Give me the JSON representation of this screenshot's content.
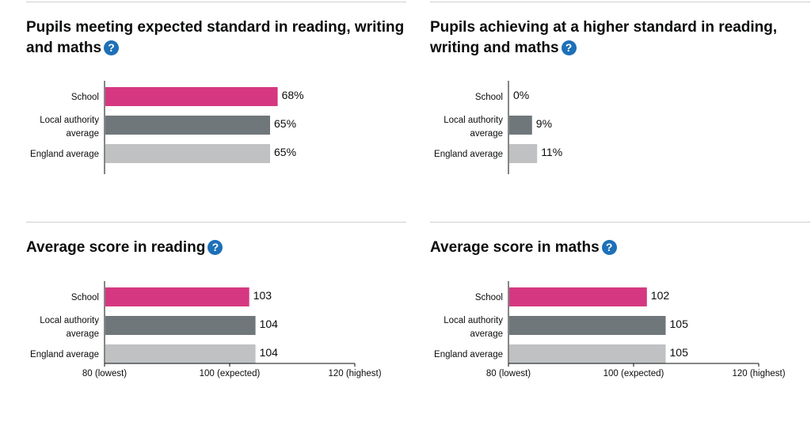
{
  "colors": {
    "school": "#d53880",
    "local": "#6f777b",
    "england": "#bfc1c3",
    "help": "#1d70b8"
  },
  "icons": {
    "help": "question-mark-circle-icon",
    "help_glyph": "?"
  },
  "chart_data": [
    {
      "type": "bar",
      "orientation": "horizontal",
      "title": "Pupils meeting expected standard in reading, writing and maths",
      "categories": [
        "School",
        "Local authority average",
        "England average"
      ],
      "values": [
        68,
        65,
        65
      ],
      "value_labels": [
        "68%",
        "65%",
        "65%"
      ],
      "xlim": [
        0,
        100
      ],
      "ticks": [],
      "legend": "none",
      "grid": false
    },
    {
      "type": "bar",
      "orientation": "horizontal",
      "title": "Pupils achieving at a higher standard in reading, writing and maths",
      "categories": [
        "School",
        "Local authority average",
        "England average"
      ],
      "values": [
        0,
        9,
        11
      ],
      "value_labels": [
        "0%",
        "9%",
        "11%"
      ],
      "xlim": [
        0,
        100
      ],
      "ticks": [],
      "legend": "none",
      "grid": false
    },
    {
      "type": "bar",
      "orientation": "horizontal",
      "title": "Average score in reading",
      "categories": [
        "School",
        "Local authority average",
        "England average"
      ],
      "values": [
        103,
        104,
        104
      ],
      "value_labels": [
        "103",
        "104",
        "104"
      ],
      "xlim": [
        80,
        120
      ],
      "ticks": [
        {
          "value": 80,
          "label": "80 (lowest)"
        },
        {
          "value": 100,
          "label": "100 (expected)"
        },
        {
          "value": 120,
          "label": "120 (highest)"
        }
      ],
      "legend": "none",
      "grid": false
    },
    {
      "type": "bar",
      "orientation": "horizontal",
      "title": "Average score in maths",
      "categories": [
        "School",
        "Local authority average",
        "England average"
      ],
      "values": [
        102,
        105,
        105
      ],
      "value_labels": [
        "102",
        "105",
        "105"
      ],
      "xlim": [
        80,
        120
      ],
      "ticks": [
        {
          "value": 80,
          "label": "80 (lowest)"
        },
        {
          "value": 100,
          "label": "100 (expected)"
        },
        {
          "value": 120,
          "label": "120 (highest)"
        }
      ],
      "legend": "none",
      "grid": false
    }
  ]
}
